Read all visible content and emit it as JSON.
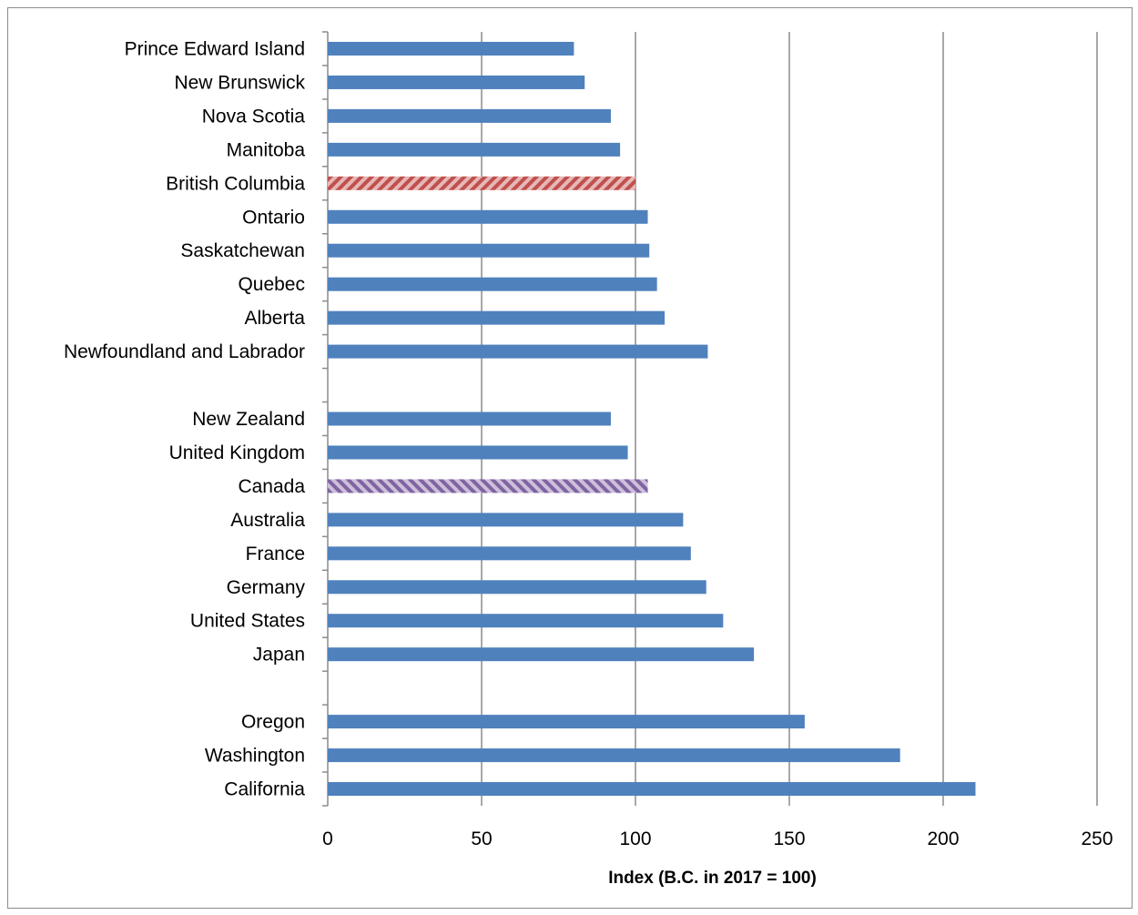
{
  "chart_data": {
    "type": "bar",
    "orientation": "horizontal",
    "xlabel": "Index (B.C. in 2017 = 100)",
    "xlim": [
      0,
      250
    ],
    "xticks": [
      0,
      50,
      100,
      150,
      200,
      250
    ],
    "grid": "vertical",
    "colors": {
      "default": "#4f81bd",
      "british_columbia": "#c0504d",
      "canada": "#8064a2"
    },
    "rows": [
      {
        "label": "Prince Edward Island",
        "value": 80
      },
      {
        "label": "New Brunswick",
        "value": 83.5
      },
      {
        "label": "Nova Scotia",
        "value": 92
      },
      {
        "label": "Manitoba",
        "value": 95
      },
      {
        "label": "British Columbia",
        "value": 100,
        "pattern": "hatch",
        "color": "#c0504d"
      },
      {
        "label": "Ontario",
        "value": 104
      },
      {
        "label": "Saskatchewan",
        "value": 104.5
      },
      {
        "label": "Quebec",
        "value": 107
      },
      {
        "label": "Alberta",
        "value": 109.5
      },
      {
        "label": "Newfoundland and Labrador",
        "value": 123.5
      },
      {
        "label": "",
        "value": null
      },
      {
        "label": "New Zealand",
        "value": 92
      },
      {
        "label": "United Kingdom",
        "value": 97.5
      },
      {
        "label": "Canada",
        "value": 104,
        "pattern": "hatch",
        "color": "#8064a2"
      },
      {
        "label": "Australia",
        "value": 115.5
      },
      {
        "label": "France",
        "value": 118
      },
      {
        "label": "Germany",
        "value": 123
      },
      {
        "label": "United States",
        "value": 128.5
      },
      {
        "label": "Japan",
        "value": 138.5
      },
      {
        "label": "",
        "value": null
      },
      {
        "label": "Oregon",
        "value": 155
      },
      {
        "label": "Washington",
        "value": 186
      },
      {
        "label": "California",
        "value": 210.5
      }
    ]
  }
}
